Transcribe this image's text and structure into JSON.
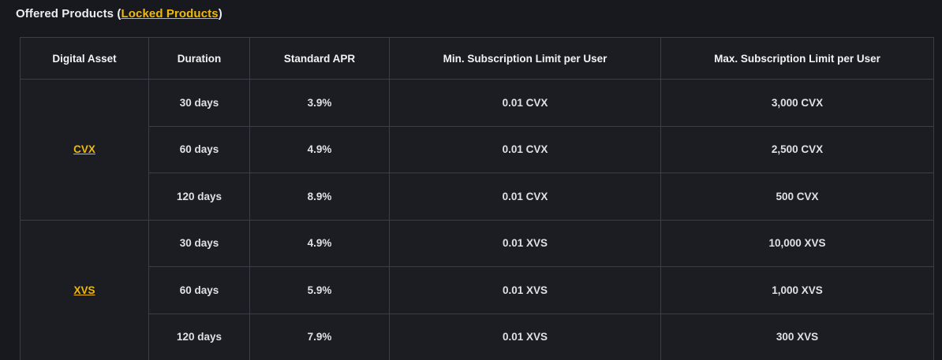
{
  "title": {
    "prefix": "Offered Products (",
    "link_label": "Locked Products",
    "suffix": ")"
  },
  "colors": {
    "accent_link": "#f0b90b",
    "background": "#17191e",
    "table_border": "#3a3e47",
    "header_text": "#f2f3f5",
    "cell_text": "#dfe1e5"
  },
  "table": {
    "headers": [
      "Digital Asset",
      "Duration",
      "Standard APR",
      "Min. Subscription Limit per User",
      "Max. Subscription Limit per User"
    ],
    "groups": [
      {
        "asset": "CVX",
        "rows": [
          {
            "duration": "30 days",
            "apr": "3.9%",
            "min": "0.01 CVX",
            "max": "3,000 CVX"
          },
          {
            "duration": "60 days",
            "apr": "4.9%",
            "min": "0.01 CVX",
            "max": "2,500 CVX"
          },
          {
            "duration": "120 days",
            "apr": "8.9%",
            "min": "0.01 CVX",
            "max": "500 CVX"
          }
        ]
      },
      {
        "asset": "XVS",
        "rows": [
          {
            "duration": "30 days",
            "apr": "4.9%",
            "min": "0.01 XVS",
            "max": "10,000 XVS"
          },
          {
            "duration": "60 days",
            "apr": "5.9%",
            "min": "0.01 XVS",
            "max": "1,000 XVS"
          },
          {
            "duration": "120 days",
            "apr": "7.9%",
            "min": "0.01 XVS",
            "max": "300 XVS"
          }
        ]
      }
    ]
  }
}
